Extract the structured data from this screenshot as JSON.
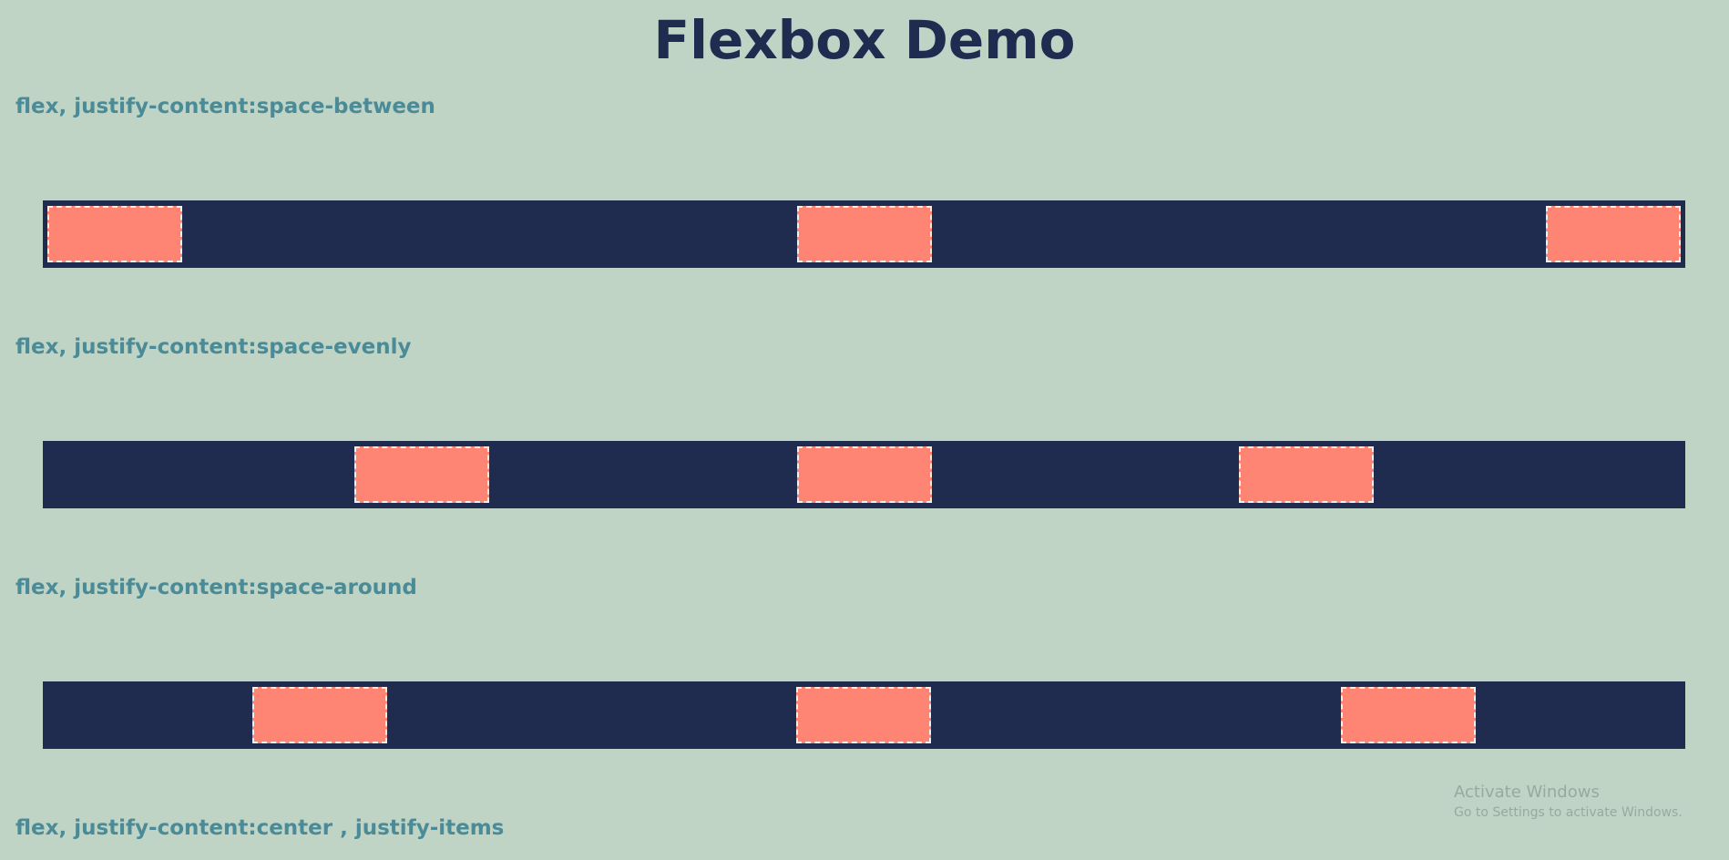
{
  "page": {
    "title": "Flexbox Demo"
  },
  "sections": [
    {
      "label": "flex, justify-content:space-between"
    },
    {
      "label": "flex, justify-content:space-evenly"
    },
    {
      "label": "flex, justify-content:space-around"
    },
    {
      "label": "flex, justify-content:center , justify-items"
    }
  ],
  "watermark": {
    "title": "Activate Windows",
    "subtitle": "Go to Settings to activate Windows."
  },
  "colors": {
    "background": "#bfd4c5",
    "title": "#1f2c50",
    "label": "#4a8b97",
    "bar": "#1f2c50",
    "box": "#fe8473",
    "box_border": "#f2eee9"
  }
}
